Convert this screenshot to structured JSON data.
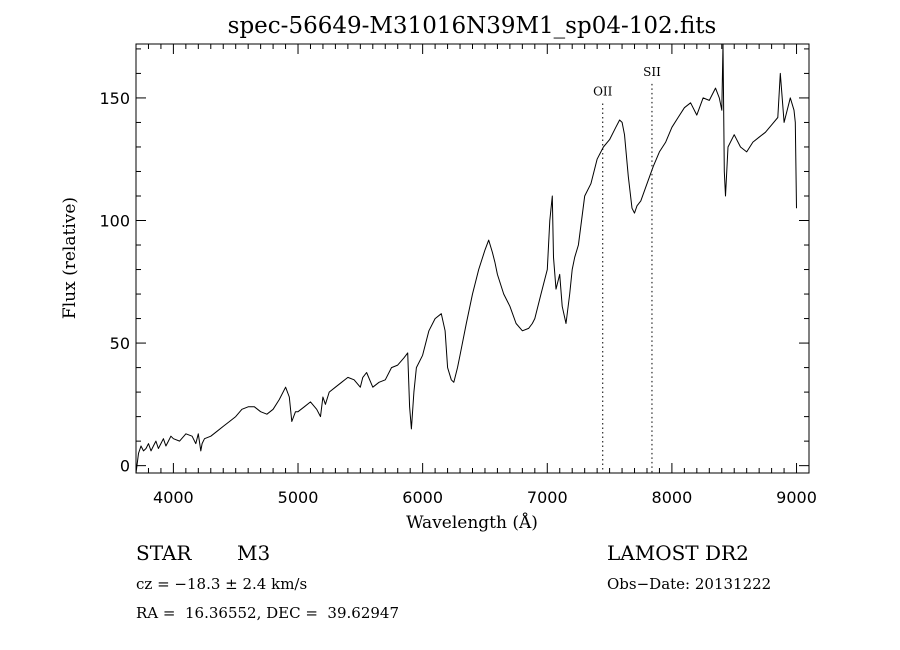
{
  "chart_data": {
    "type": "line",
    "title": "spec-56649-M31016N39M1_sp04-102.fits",
    "xlabel": "Wavelength (Å)",
    "ylabel": "Flux (relative)",
    "xlim": [
      3700,
      9100
    ],
    "ylim": [
      -3,
      172
    ],
    "x_ticks": [
      4000,
      5000,
      6000,
      7000,
      8000,
      9000
    ],
    "y_ticks": [
      0,
      50,
      100,
      150
    ],
    "grid": false,
    "line_color": "#000000",
    "annotations": [
      {
        "label": "OII",
        "x": 7445,
        "label_y": 151
      },
      {
        "label": "SII",
        "x": 7840,
        "label_y": 159
      }
    ],
    "series": [
      {
        "x": [
          3700,
          3720,
          3740,
          3760,
          3780,
          3800,
          3820,
          3840,
          3860,
          3880,
          3900,
          3920,
          3940,
          3960,
          3980,
          4000,
          4050,
          4100,
          4150,
          4180,
          4200,
          4220,
          4230,
          4250,
          4300,
          4350,
          4400,
          4450,
          4500,
          4550,
          4600,
          4650,
          4700,
          4750,
          4800,
          4850,
          4900,
          4930,
          4950,
          4980,
          5000,
          5050,
          5100,
          5150,
          5180,
          5200,
          5220,
          5250,
          5300,
          5350,
          5400,
          5450,
          5500,
          5520,
          5550,
          5600,
          5650,
          5700,
          5750,
          5800,
          5850,
          5880,
          5895,
          5910,
          5930,
          5950,
          6000,
          6050,
          6100,
          6150,
          6180,
          6200,
          6230,
          6250,
          6280,
          6300,
          6350,
          6400,
          6450,
          6500,
          6530,
          6560,
          6580,
          6600,
          6650,
          6700,
          6750,
          6800,
          6850,
          6880,
          6900,
          6950,
          7000,
          7020,
          7040,
          7050,
          7070,
          7100,
          7120,
          7150,
          7180,
          7200,
          7220,
          7250,
          7300,
          7350,
          7400,
          7450,
          7500,
          7550,
          7580,
          7600,
          7620,
          7650,
          7680,
          7700,
          7720,
          7750,
          7800,
          7850,
          7900,
          7950,
          8000,
          8050,
          8100,
          8150,
          8200,
          8250,
          8300,
          8350,
          8380,
          8400,
          8410,
          8420,
          8430,
          8450,
          8500,
          8550,
          8600,
          8650,
          8700,
          8750,
          8800,
          8850,
          8870,
          8900,
          8950,
          8980,
          8990,
          9000
        ],
        "y": [
          -3,
          5,
          8,
          6,
          7,
          9,
          6,
          8,
          10,
          7,
          9,
          11,
          8,
          10,
          12,
          11,
          10,
          13,
          12,
          9,
          13,
          6,
          9,
          11,
          12,
          14,
          16,
          18,
          20,
          23,
          24,
          24,
          22,
          21,
          23,
          27,
          32,
          28,
          18,
          22,
          22,
          24,
          26,
          23,
          20,
          28,
          25,
          30,
          32,
          34,
          36,
          35,
          32,
          36,
          38,
          32,
          34,
          35,
          40,
          41,
          44,
          46,
          24,
          15,
          30,
          40,
          45,
          55,
          60,
          62,
          55,
          40,
          35,
          34,
          40,
          45,
          58,
          70,
          80,
          88,
          92,
          87,
          83,
          78,
          70,
          65,
          58,
          55,
          56,
          58,
          60,
          70,
          80,
          100,
          110,
          85,
          72,
          78,
          65,
          58,
          70,
          80,
          85,
          90,
          110,
          115,
          125,
          130,
          133,
          138,
          141,
          140,
          135,
          118,
          105,
          103,
          106,
          108,
          115,
          122,
          128,
          132,
          138,
          142,
          146,
          148,
          143,
          150,
          149,
          154,
          150,
          145,
          172,
          120,
          110,
          130,
          135,
          130,
          128,
          132,
          134,
          136,
          139,
          142,
          160,
          140,
          150,
          145,
          140,
          105
        ]
      }
    ]
  },
  "info": {
    "object_class": "STAR",
    "subclass": "M3",
    "cz": "cz = −18.3 ± 2.4 km/s",
    "coords": "RA =  16.36552, DEC =  39.62947",
    "survey": "LAMOST DR2",
    "obs_date": "Obs−Date: 20131222"
  }
}
